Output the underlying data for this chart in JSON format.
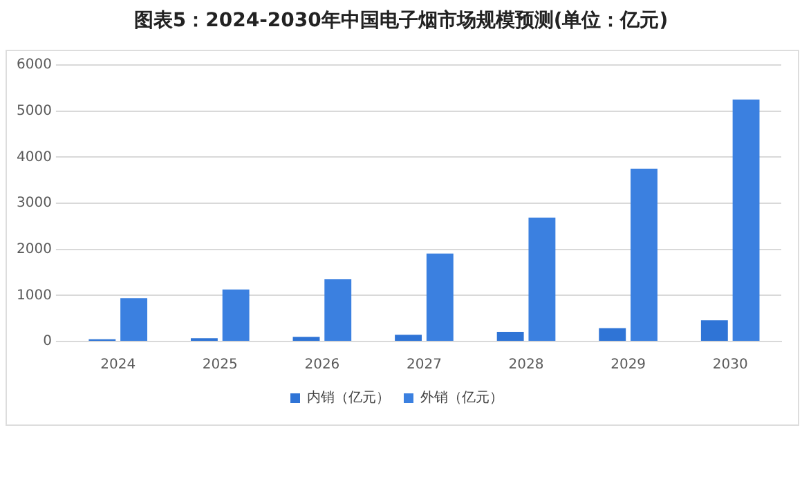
{
  "chart_data": {
    "type": "bar",
    "title": "图表5：2024-2030年中国电子烟市场规模预测(单位：亿元)",
    "categories": [
      "2024",
      "2025",
      "2026",
      "2027",
      "2028",
      "2029",
      "2030"
    ],
    "series": [
      {
        "name": "内销（亿元）",
        "color": "#2f74d6",
        "values": [
          50,
          70,
          100,
          145,
          210,
          290,
          460
        ]
      },
      {
        "name": "外销（亿元）",
        "color": "#3b80e0",
        "values": [
          940,
          1130,
          1350,
          1910,
          2690,
          3750,
          5250
        ]
      }
    ],
    "ylim": [
      0,
      6000
    ],
    "yticks": [
      0,
      1000,
      2000,
      3000,
      4000,
      5000,
      6000
    ],
    "grid": "y",
    "legend": "bottom"
  }
}
